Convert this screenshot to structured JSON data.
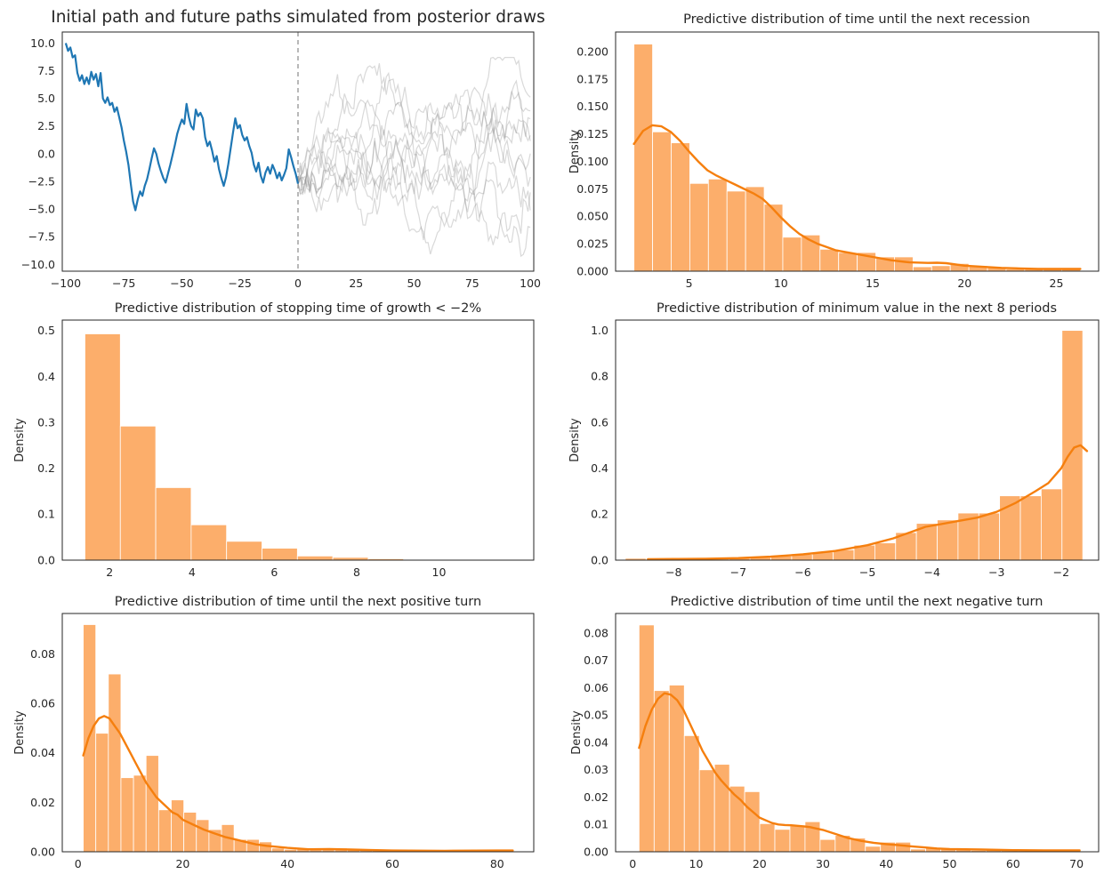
{
  "figure": {
    "background": "#ffffff",
    "text_color": "#262626"
  },
  "colors": {
    "initial_path": "#1f77b4",
    "future_paths": "rgba(130,130,130,0.30)",
    "vline": "#8a8a8a",
    "hist_bar": "#fcae6b",
    "hist_bar_edge": "#ffffff",
    "kde_line": "#f57f0e",
    "spine": "#262626"
  },
  "chart_data": [
    {
      "id": "initial-and-future-paths",
      "type": "line",
      "title": "Initial path and future paths simulated from posterior draws",
      "ylabel": "",
      "xlim": [
        -101.5,
        101.5
      ],
      "ylim": [
        -10.6,
        11.0
      ],
      "grid": false,
      "legend": false,
      "xticks": {
        "values": [
          -100,
          -75,
          -50,
          -25,
          0,
          25,
          50,
          75,
          100
        ],
        "labels": [
          "−100",
          "−75",
          "−50",
          "−25",
          "0",
          "25",
          "50",
          "75",
          "100"
        ]
      },
      "yticks": {
        "values": [
          -10,
          -7.5,
          -5,
          -2.5,
          0,
          2.5,
          5,
          7.5,
          10
        ],
        "labels": [
          "−10.0",
          "−7.5",
          "−5.0",
          "−2.5",
          "0.0",
          "2.5",
          "5.0",
          "7.5",
          "10.0"
        ]
      },
      "vline": {
        "x": 0,
        "style": "dashed"
      },
      "series": {
        "name": "initial-path",
        "x_start": -100,
        "x_step": 1,
        "y": [
          10.0,
          9.3,
          9.6,
          8.7,
          8.9,
          7.3,
          6.6,
          7.1,
          6.3,
          6.9,
          6.3,
          7.4,
          6.7,
          7.2,
          6.1,
          7.3,
          5.0,
          4.6,
          5.1,
          4.4,
          4.6,
          3.8,
          4.2,
          3.3,
          2.4,
          1.2,
          0.2,
          -1.0,
          -2.7,
          -4.3,
          -5.1,
          -4.1,
          -3.4,
          -3.8,
          -2.9,
          -2.3,
          -1.4,
          -0.4,
          0.5,
          0.0,
          -0.9,
          -1.6,
          -2.2,
          -2.6,
          -1.8,
          -1.0,
          -0.1,
          0.8,
          1.8,
          2.5,
          3.1,
          2.7,
          4.5,
          3.3,
          2.5,
          2.2,
          4.0,
          3.4,
          3.7,
          3.2,
          1.5,
          0.7,
          1.1,
          0.3,
          -0.7,
          -0.2,
          -1.4,
          -2.2,
          -2.9,
          -2.1,
          -0.9,
          0.5,
          1.9,
          3.2,
          2.3,
          2.6,
          1.7,
          1.2,
          1.5,
          0.7,
          0.1,
          -1.0,
          -1.6,
          -0.8,
          -2.0,
          -2.6,
          -1.7,
          -1.2,
          -1.8,
          -1.0,
          -1.5,
          -2.2,
          -1.7,
          -2.4,
          -1.9,
          -1.3,
          0.4,
          -0.3,
          -1.1,
          -1.8,
          -2.7
        ]
      },
      "future_paths": {
        "description": "gray simulated future paths from posterior draws",
        "count": 10,
        "seed": 20240,
        "x_start": 0,
        "x_end": 100,
        "start_y": -2.7,
        "step_scale": 1.6,
        "mean_reversion": 0.025,
        "clamp": [
          -9.4,
          8.7
        ]
      }
    },
    {
      "id": "time-until-next-recession",
      "type": "histogram",
      "title": "Predictive distribution of time until the next recession",
      "ylabel": "Density",
      "xlim": [
        1.0,
        27.3
      ],
      "ylim": [
        0,
        0.218
      ],
      "grid": false,
      "xticks": {
        "values": [
          5,
          10,
          15,
          20,
          25
        ],
        "labels": [
          "5",
          "10",
          "15",
          "20",
          "25"
        ]
      },
      "yticks": {
        "values": [
          0,
          0.025,
          0.05,
          0.075,
          0.1,
          0.125,
          0.15,
          0.175,
          0.2
        ],
        "labels": [
          "0.000",
          "0.025",
          "0.050",
          "0.075",
          "0.100",
          "0.125",
          "0.150",
          "0.175",
          "0.200"
        ]
      },
      "bins": {
        "start": 2.0,
        "width": 1.013
      },
      "heights": [
        0.207,
        0.127,
        0.117,
        0.08,
        0.084,
        0.073,
        0.077,
        0.061,
        0.031,
        0.033,
        0.02,
        0.017,
        0.017,
        0.013,
        0.013,
        0.004,
        0.005,
        0.007,
        0.005,
        0.004,
        0.002,
        0.002,
        0.002,
        0.002
      ],
      "kde": {
        "x": [
          2,
          2.5,
          3,
          3.5,
          4,
          4.5,
          5,
          5.5,
          6,
          6.5,
          7,
          7.5,
          8,
          8.5,
          9,
          9.5,
          10,
          10.5,
          11,
          11.5,
          12,
          12.5,
          13,
          14,
          15,
          16,
          17,
          18,
          18.5,
          19,
          20,
          21,
          22,
          23,
          24,
          25,
          26.3
        ],
        "y": [
          0.116,
          0.128,
          0.133,
          0.132,
          0.127,
          0.119,
          0.109,
          0.1,
          0.092,
          0.087,
          0.083,
          0.079,
          0.075,
          0.071,
          0.066,
          0.058,
          0.049,
          0.041,
          0.034,
          0.029,
          0.025,
          0.022,
          0.019,
          0.016,
          0.013,
          0.01,
          0.008,
          0.0075,
          0.0077,
          0.0073,
          0.005,
          0.004,
          0.003,
          0.0025,
          0.002,
          0.002,
          0.002
        ]
      }
    },
    {
      "id": "stopping-time-of-growth",
      "type": "histogram",
      "title": "Predictive distribution of stopping time of growth < −2%",
      "ylabel": "Density",
      "xlim": [
        0.85,
        12.3
      ],
      "ylim": [
        0,
        0.523
      ],
      "grid": false,
      "xticks": {
        "values": [
          2,
          4,
          6,
          8,
          10
        ],
        "labels": [
          "2",
          "4",
          "6",
          "8",
          "10"
        ]
      },
      "yticks": {
        "values": [
          0,
          0.1,
          0.2,
          0.3,
          0.4,
          0.5
        ],
        "labels": [
          "0.0",
          "0.1",
          "0.2",
          "0.3",
          "0.4",
          "0.5"
        ]
      },
      "bins": {
        "start": 1.4,
        "width": 0.86
      },
      "heights": [
        0.493,
        0.292,
        0.158,
        0.077,
        0.041,
        0.026,
        0.009,
        0.006,
        0.003,
        0.001,
        0.0008,
        0.0005
      ],
      "kde": null
    },
    {
      "id": "minimum-value-next-8-periods",
      "type": "histogram",
      "title": "Predictive distribution of minimum value in the next 8 periods",
      "ylabel": "Density",
      "xlim": [
        -8.9,
        -1.42
      ],
      "ylim": [
        0,
        1.045
      ],
      "grid": false,
      "xticks": {
        "values": [
          -8,
          -7,
          -6,
          -5,
          -4,
          -3,
          -2
        ],
        "labels": [
          "−8",
          "−7",
          "−6",
          "−5",
          "−4",
          "−3",
          "−2"
        ]
      },
      "yticks": {
        "values": [
          0,
          0.2,
          0.4,
          0.6,
          0.8,
          1.0
        ],
        "labels": [
          "0.0",
          "0.2",
          "0.4",
          "0.6",
          "0.8",
          "1.0"
        ]
      },
      "bins": {
        "start": -8.75,
        "width": 0.322
      },
      "heights": [
        0.008,
        0.002,
        0.002,
        0.003,
        0.005,
        0.008,
        0.012,
        0.018,
        0.025,
        0.035,
        0.045,
        0.065,
        0.075,
        0.12,
        0.16,
        0.175,
        0.205,
        0.205,
        0.28,
        0.28,
        0.31,
        1.0
      ],
      "kde": {
        "x": [
          -8.4,
          -8,
          -7.5,
          -7,
          -6.5,
          -6,
          -5.5,
          -5,
          -4.6,
          -4.3,
          -4.1,
          -3.9,
          -3.6,
          -3.3,
          -3.0,
          -2.7,
          -2.4,
          -2.2,
          -2.0,
          -1.9,
          -1.8,
          -1.7,
          -1.6
        ],
        "y": [
          0.004,
          0.005,
          0.006,
          0.009,
          0.015,
          0.025,
          0.04,
          0.065,
          0.095,
          0.125,
          0.145,
          0.155,
          0.17,
          0.185,
          0.21,
          0.25,
          0.3,
          0.335,
          0.4,
          0.45,
          0.49,
          0.5,
          0.475
        ]
      }
    },
    {
      "id": "time-until-next-positive-turn",
      "type": "histogram",
      "title": "Predictive distribution of time until the next positive turn",
      "ylabel": "Density",
      "xlim": [
        -3,
        87
      ],
      "ylim": [
        0,
        0.0965
      ],
      "grid": false,
      "xticks": {
        "values": [
          0,
          20,
          40,
          60,
          80
        ],
        "labels": [
          "0",
          "20",
          "40",
          "60",
          "80"
        ]
      },
      "yticks": {
        "values": [
          0,
          0.02,
          0.04,
          0.06,
          0.08
        ],
        "labels": [
          "0.00",
          "0.02",
          "0.04",
          "0.06",
          "0.08"
        ]
      },
      "bins": {
        "start": 1.0,
        "width": 2.4
      },
      "heights": [
        0.092,
        0.048,
        0.072,
        0.03,
        0.031,
        0.039,
        0.017,
        0.021,
        0.016,
        0.013,
        0.009,
        0.011,
        0.005,
        0.005,
        0.004,
        0.0015,
        0.001,
        0.0015,
        0.001,
        0.001,
        0.0015,
        0.001,
        0.0005,
        0.0008,
        0.0005,
        0.0004,
        0.0005,
        0.0003,
        0.0004,
        0.0003,
        0.0002,
        0.0003,
        0.0002,
        0.0005
      ],
      "kde": {
        "x": [
          1,
          2,
          3,
          4,
          5,
          6,
          7,
          8,
          9,
          10,
          11,
          12,
          13,
          14,
          15,
          16,
          17,
          18,
          19,
          20,
          22,
          24,
          26,
          28,
          30,
          32,
          34,
          36,
          38,
          40,
          44,
          48,
          52,
          56,
          60,
          70,
          80,
          83
        ],
        "y": [
          0.039,
          0.046,
          0.051,
          0.054,
          0.055,
          0.054,
          0.051,
          0.048,
          0.044,
          0.04,
          0.036,
          0.032,
          0.028,
          0.025,
          0.022,
          0.02,
          0.018,
          0.016,
          0.015,
          0.013,
          0.011,
          0.009,
          0.0075,
          0.006,
          0.005,
          0.004,
          0.003,
          0.0024,
          0.002,
          0.0016,
          0.001,
          0.0011,
          0.0009,
          0.0007,
          0.0005,
          0.0004,
          0.0005,
          0.0005
        ]
      }
    },
    {
      "id": "time-until-next-negative-turn",
      "type": "histogram",
      "title": "Predictive distribution of time until the next negative turn",
      "ylabel": "Density",
      "xlim": [
        -2.7,
        73.5
      ],
      "ylim": [
        0,
        0.0872
      ],
      "grid": false,
      "xticks": {
        "values": [
          0,
          10,
          20,
          30,
          40,
          50,
          60,
          70
        ],
        "labels": [
          "0",
          "10",
          "20",
          "30",
          "40",
          "50",
          "60",
          "70"
        ]
      },
      "yticks": {
        "values": [
          0,
          0.01,
          0.02,
          0.03,
          0.04,
          0.05,
          0.06,
          0.07,
          0.08
        ],
        "labels": [
          "0.00",
          "0.01",
          "0.02",
          "0.03",
          "0.04",
          "0.05",
          "0.06",
          "0.07",
          "0.08"
        ]
      },
      "bins": {
        "start": 1.0,
        "width": 2.38
      },
      "heights": [
        0.083,
        0.059,
        0.061,
        0.0425,
        0.03,
        0.032,
        0.024,
        0.022,
        0.0103,
        0.0082,
        0.0095,
        0.011,
        0.0045,
        0.006,
        0.005,
        0.002,
        0.0035,
        0.0035,
        0.001,
        0.0015,
        0.001,
        0.0008,
        0.0005,
        0.0008,
        0.0006,
        0.0004,
        0.0003,
        0.0004,
        0.0005
      ],
      "kde": {
        "x": [
          1,
          2,
          3,
          4,
          5,
          6,
          7,
          8,
          9,
          10,
          11,
          12,
          13,
          14,
          15,
          16,
          17,
          18,
          19,
          20,
          21,
          22,
          23,
          24,
          25,
          26,
          27,
          28,
          29,
          30,
          32,
          34,
          36,
          38,
          40,
          42,
          44,
          46,
          48,
          50,
          55,
          60,
          65,
          70.5
        ],
        "y": [
          0.038,
          0.046,
          0.052,
          0.056,
          0.058,
          0.0575,
          0.0555,
          0.052,
          0.047,
          0.042,
          0.037,
          0.033,
          0.029,
          0.026,
          0.0235,
          0.021,
          0.019,
          0.0165,
          0.0145,
          0.0125,
          0.0115,
          0.0105,
          0.01,
          0.0098,
          0.0097,
          0.0095,
          0.0093,
          0.009,
          0.0085,
          0.008,
          0.0065,
          0.005,
          0.004,
          0.0033,
          0.0028,
          0.0024,
          0.002,
          0.0016,
          0.0012,
          0.001,
          0.0008,
          0.0006,
          0.0005,
          0.0005
        ]
      }
    }
  ]
}
